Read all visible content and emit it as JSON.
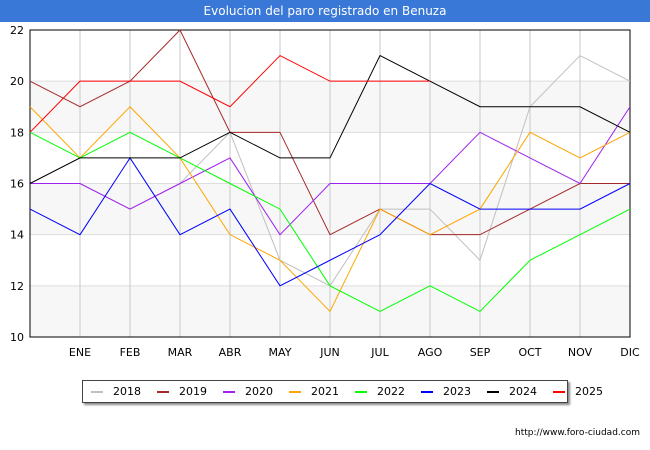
{
  "title": "Evolucion del paro registrado en Benuza",
  "footer": "http://www.foro-ciudad.com",
  "chart_data": {
    "type": "line",
    "title": "Evolucion del paro registrado en Benuza",
    "categories": [
      "",
      "ENE",
      "FEB",
      "MAR",
      "ABR",
      "MAY",
      "JUN",
      "JUL",
      "AGO",
      "SEP",
      "OCT",
      "NOV",
      "DIC"
    ],
    "ylim": [
      10,
      22
    ],
    "yticks": [
      10,
      12,
      14,
      16,
      18,
      20,
      22
    ],
    "grid": true,
    "legend_position": "bottom",
    "series": [
      {
        "name": "2018",
        "color": "#c0c0c0",
        "values": [
          16,
          16,
          15,
          16,
          18,
          13,
          12,
          15,
          15,
          13,
          19,
          21,
          20
        ]
      },
      {
        "name": "2019",
        "color": "#a52a2a",
        "values": [
          20,
          19,
          20,
          22,
          18,
          18,
          14,
          15,
          14,
          14,
          15,
          16,
          16
        ]
      },
      {
        "name": "2020",
        "color": "#a020f0",
        "values": [
          16,
          16,
          15,
          16,
          17,
          14,
          16,
          16,
          16,
          18,
          17,
          16,
          19
        ]
      },
      {
        "name": "2021",
        "color": "#ffa500",
        "values": [
          19,
          17,
          19,
          17,
          14,
          13,
          11,
          15,
          14,
          15,
          18,
          17,
          18
        ]
      },
      {
        "name": "2022",
        "color": "#00ff00",
        "values": [
          18,
          17,
          18,
          17,
          16,
          15,
          12,
          11,
          12,
          11,
          13,
          14,
          15
        ]
      },
      {
        "name": "2023",
        "color": "#0000ff",
        "values": [
          15,
          14,
          17,
          14,
          15,
          12,
          13,
          14,
          16,
          15,
          15,
          15,
          16
        ]
      },
      {
        "name": "2024",
        "color": "#000000",
        "values": [
          16,
          17,
          17,
          17,
          18,
          17,
          17,
          21,
          20,
          19,
          19,
          19,
          18
        ]
      },
      {
        "name": "2025",
        "color": "#ff0000",
        "values": [
          18,
          20,
          20,
          20,
          19,
          21,
          20,
          20,
          20,
          null,
          null,
          null,
          null
        ]
      }
    ]
  }
}
